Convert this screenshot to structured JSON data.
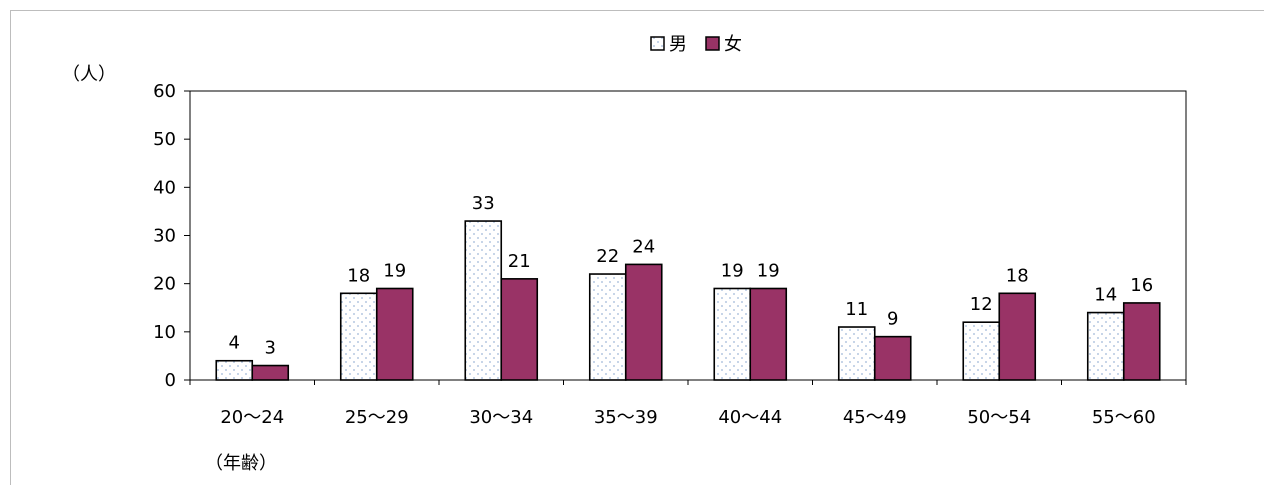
{
  "chart_data": {
    "type": "bar",
    "categories": [
      "20～24",
      "25～29",
      "30～34",
      "35～39",
      "40～44",
      "45～49",
      "50～54",
      "55～60"
    ],
    "series": [
      {
        "name": "男",
        "values": [
          4,
          18,
          33,
          22,
          19,
          11,
          12,
          14
        ],
        "color": "#ffffff",
        "pattern": "dots-light-blue"
      },
      {
        "name": "女",
        "values": [
          3,
          19,
          21,
          24,
          19,
          9,
          18,
          16
        ],
        "color": "#993366"
      }
    ],
    "y_unit_label": "（人）",
    "x_unit_label": "（年齢）",
    "ylim": [
      0,
      60
    ],
    "yticks": [
      0,
      10,
      20,
      30,
      40,
      50,
      60
    ],
    "grid": false,
    "data_labels": true,
    "legend_position": "top-center"
  }
}
